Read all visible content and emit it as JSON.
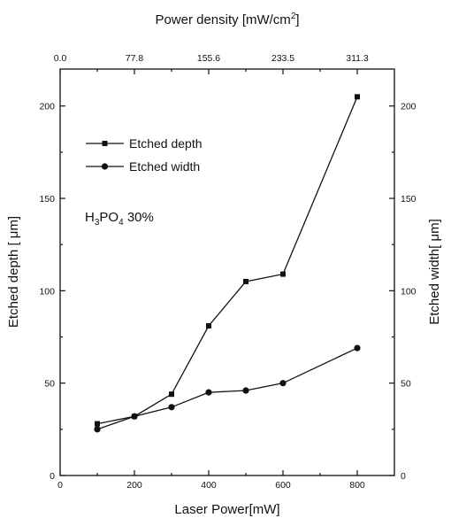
{
  "chart_data": {
    "type": "line",
    "title": "",
    "xlabel": "Laser Power[mW]",
    "ylabel": "Etched depth [ μm]",
    "ylabel_right": "Etched width[ μm]",
    "xlabel_top": "Power density [mW/cm²]",
    "xlabel_top_base": "Power density [mW/cm",
    "xlabel_top_sup": "2",
    "xlabel_top_end": "]",
    "xlim": [
      0,
      900
    ],
    "ylim": [
      0,
      220
    ],
    "x_ticks": [
      "0",
      "200",
      "400",
      "600",
      "800"
    ],
    "y_ticks": [
      "0",
      "50",
      "100",
      "150",
      "200"
    ],
    "y_ticks_right": [
      "0",
      "50",
      "100",
      "150",
      "200"
    ],
    "top_ticks": [
      "0.0",
      "77.8",
      "155.6",
      "233.5",
      "311.3"
    ],
    "top_tick_values": [
      0,
      200,
      400,
      600,
      800
    ],
    "annotation": {
      "pre": "H",
      "sub1": "3",
      "mid": "PO",
      "sub2": "4",
      "post": " 30%"
    },
    "legend_position": "upper-left",
    "grid": false,
    "series": [
      {
        "name": "Etched depth",
        "marker": "square",
        "x": [
          100,
          200,
          300,
          400,
          500,
          600,
          800
        ],
        "values": [
          28,
          32,
          44,
          81,
          105,
          109,
          205
        ]
      },
      {
        "name": "Etched width",
        "marker": "circle",
        "x": [
          100,
          200,
          300,
          400,
          500,
          600,
          800
        ],
        "values": [
          25,
          32,
          37,
          45,
          46,
          50,
          69
        ]
      }
    ]
  }
}
